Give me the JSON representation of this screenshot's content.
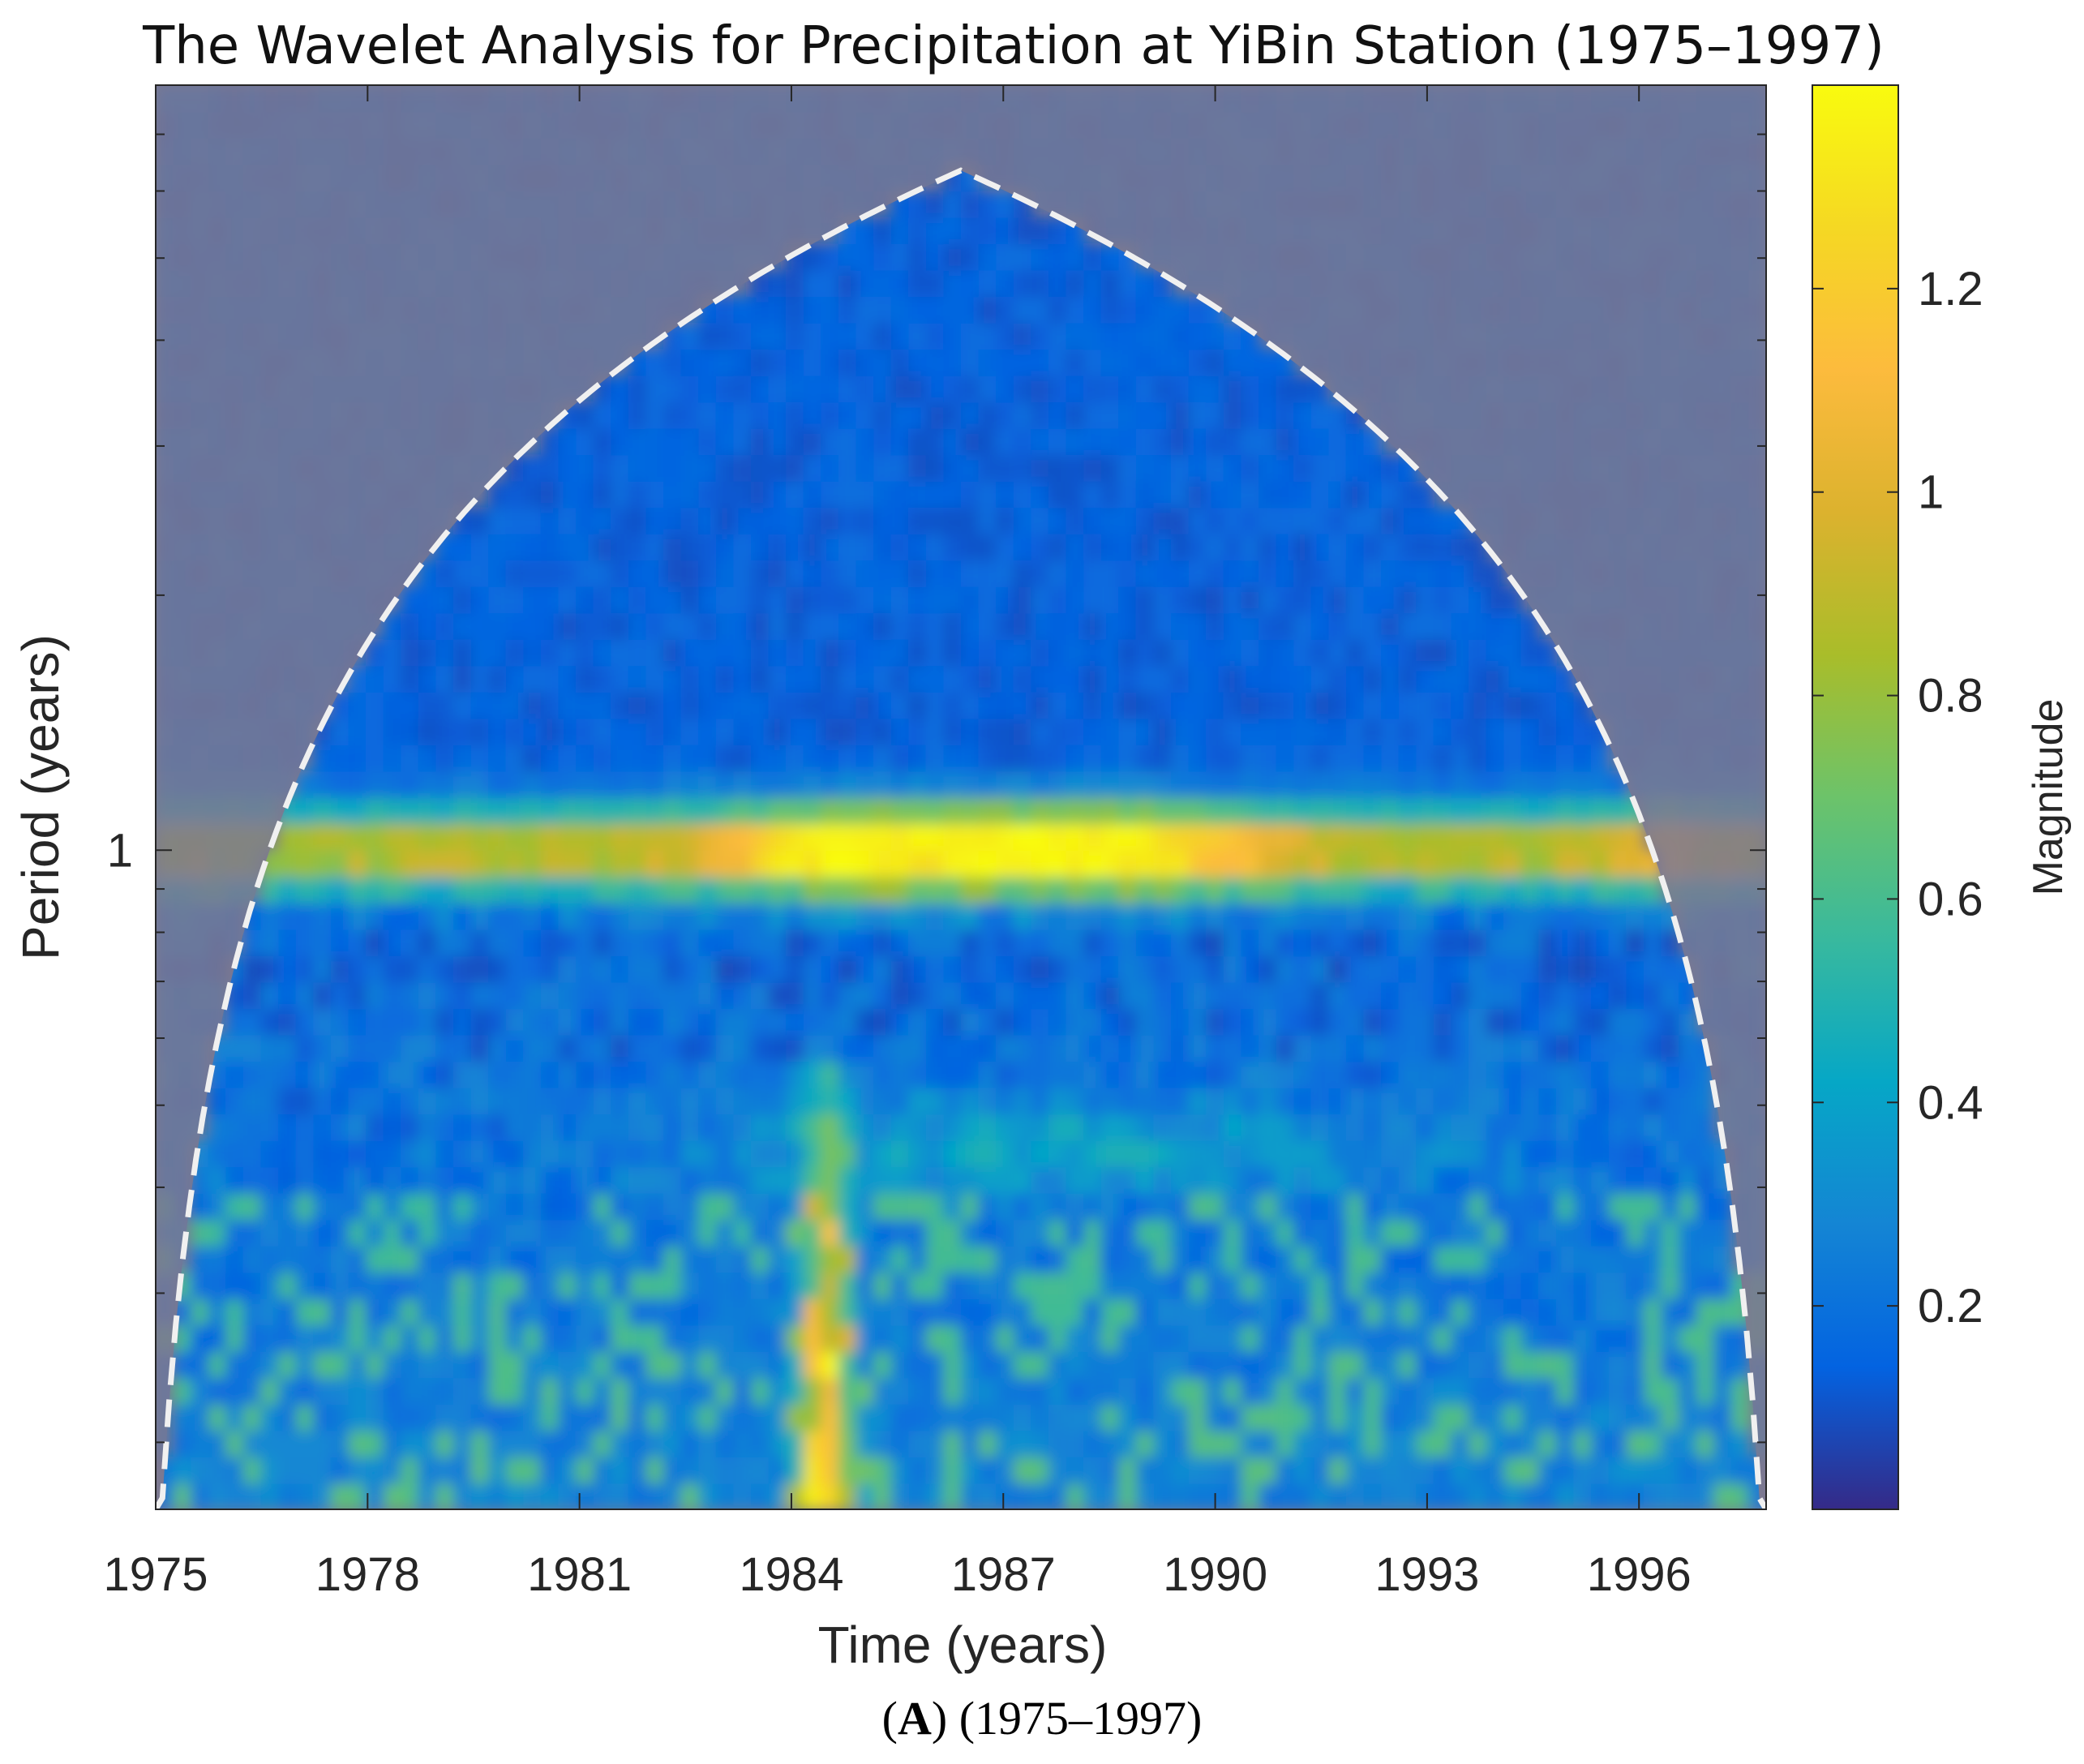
{
  "chart_data": {
    "type": "heatmap",
    "title": "The Wavelet Analysis for Precipitation at YiBin Station (1975–1997)",
    "xlabel": "Time (years)",
    "ylabel": "Period (years)",
    "colorbar_label": "Magnitude",
    "xlim": [
      1975,
      1997.8
    ],
    "x_ticks": [
      1975,
      1978,
      1981,
      1984,
      1987,
      1990,
      1993,
      1996
    ],
    "x_tick_labels": [
      "1975",
      "1978",
      "1981",
      "1984",
      "1987",
      "1990",
      "1993",
      "1996"
    ],
    "y_scale": "log2",
    "ylim": [
      0.1667,
      8.0
    ],
    "y_ticks": [
      1
    ],
    "y_tick_labels": [
      "1"
    ],
    "clim": [
      0.0,
      1.4
    ],
    "colorbar_ticks": [
      0.2,
      0.4,
      0.6,
      0.8,
      1.0,
      1.2
    ],
    "colorbar_tick_labels": [
      "0.2",
      "0.4",
      "0.6",
      "0.8",
      "1",
      "1.2"
    ],
    "colormap": "parula",
    "cone_of_influence": "white dashed line; region outside shaded grey",
    "features": [
      {
        "description": "annual band",
        "period_years": 1.0,
        "time_range": [
          1976.5,
          1996.5
        ],
        "peak_magnitude": 1.35,
        "peak_times": [
          1985.0,
          1988.5
        ]
      },
      {
        "description": "high-frequency burst",
        "time": 1984.5,
        "period_range_years": [
          0.17,
          0.5
        ],
        "peak_magnitude": 1.15
      }
    ],
    "caption_label": "A",
    "caption_text": "(1975–1997)"
  }
}
